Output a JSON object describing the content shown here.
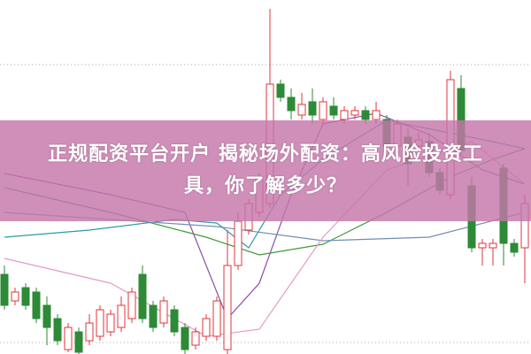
{
  "title": {
    "line1": "正规配资平台开户 揭秘场外配资：高风险投资工",
    "line2": "具，你了解多少？"
  },
  "colors": {
    "up": "#e0353a",
    "down": "#2d8a36",
    "banner": "#c476aa",
    "grid": "#aaaaaa"
  },
  "chart_data": {
    "type": "candlestick",
    "grid": "dotted horizontal",
    "axes": "none shown",
    "candles": [
      {
        "o": 22.5,
        "h": 25,
        "l": 12.5,
        "c": 13.75
      },
      {
        "o": 15,
        "h": 18.75,
        "l": 13.75,
        "c": 17.5
      },
      {
        "o": 18.75,
        "h": 20,
        "l": 12.5,
        "c": 13.75
      },
      {
        "o": 17.5,
        "h": 18.75,
        "l": 8.75,
        "c": 10
      },
      {
        "o": 13.75,
        "h": 16.25,
        "l": 2.5,
        "c": 7.5
      },
      {
        "o": 10,
        "h": 11.25,
        "l": 2.5,
        "c": 3.75
      },
      {
        "o": 1.25,
        "h": 8.75,
        "l": 0.5,
        "c": 7.5
      },
      {
        "o": 6.25,
        "h": 7.5,
        "l": 0,
        "c": 0.5
      },
      {
        "o": 3.75,
        "h": 11.25,
        "l": 2.5,
        "c": 8.75
      },
      {
        "o": 5,
        "h": 13.75,
        "l": 3.75,
        "c": 12.5
      },
      {
        "o": 6.25,
        "h": 12.5,
        "l": 5,
        "c": 11.25
      },
      {
        "o": 7.5,
        "h": 16.25,
        "l": 6.25,
        "c": 13.75
      },
      {
        "o": 10,
        "h": 18.75,
        "l": 8.75,
        "c": 17.5
      },
      {
        "o": 22.5,
        "h": 25,
        "l": 8.75,
        "c": 10
      },
      {
        "o": 13.75,
        "h": 15,
        "l": 6.25,
        "c": 7.5
      },
      {
        "o": 8.75,
        "h": 16.25,
        "l": 7.5,
        "c": 15
      },
      {
        "o": 12.5,
        "h": 13.75,
        "l": 5,
        "c": 6.25
      },
      {
        "o": 7.5,
        "h": 8.75,
        "l": 0,
        "c": 1.25
      },
      {
        "o": 2.5,
        "h": 7.5,
        "l": 1.25,
        "c": 6.25
      },
      {
        "o": 5,
        "h": 11.25,
        "l": 3.75,
        "c": 10
      },
      {
        "o": 5,
        "h": 16.25,
        "l": 3.75,
        "c": 15
      },
      {
        "o": 1.25,
        "h": 35,
        "l": 0,
        "c": 25
      },
      {
        "o": 25,
        "h": 40,
        "l": 23.75,
        "c": 37.5
      },
      {
        "o": 35,
        "h": 43.75,
        "l": 33.75,
        "c": 42.5
      },
      {
        "o": 40,
        "h": 51.25,
        "l": 38.75,
        "c": 50
      },
      {
        "o": 42.5,
        "h": 97.5,
        "l": 41.25,
        "c": 76.25
      },
      {
        "o": 76.25,
        "h": 77.5,
        "l": 71.25,
        "c": 72.5
      },
      {
        "o": 72.5,
        "h": 75,
        "l": 66.25,
        "c": 68.75
      },
      {
        "o": 67.5,
        "h": 73.75,
        "l": 66.25,
        "c": 70.5
      },
      {
        "o": 71.25,
        "h": 75,
        "l": 65,
        "c": 67.5
      },
      {
        "o": 66.25,
        "h": 72.5,
        "l": 65,
        "c": 71.25
      },
      {
        "o": 70,
        "h": 72.5,
        "l": 66.25,
        "c": 67.5
      },
      {
        "o": 66.25,
        "h": 70,
        "l": 65,
        "c": 68.75
      },
      {
        "o": 67.5,
        "h": 70,
        "l": 66.25,
        "c": 68.75
      },
      {
        "o": 68.75,
        "h": 70,
        "l": 65,
        "c": 66.25
      },
      {
        "o": 66.25,
        "h": 71.25,
        "l": 65,
        "c": 68.75
      },
      {
        "o": 66.25,
        "h": 67.5,
        "l": 57.5,
        "c": 58.75
      },
      {
        "o": 58.75,
        "h": 66.25,
        "l": 57.5,
        "c": 65
      },
      {
        "o": 61.25,
        "h": 63.75,
        "l": 47.5,
        "c": 53.75
      },
      {
        "o": 58.75,
        "h": 62.5,
        "l": 57.5,
        "c": 60.5
      },
      {
        "o": 60,
        "h": 62.5,
        "l": 50,
        "c": 51.25
      },
      {
        "o": 51.25,
        "h": 52.5,
        "l": 45,
        "c": 46.25
      },
      {
        "o": 45,
        "h": 80,
        "l": 43.75,
        "c": 77.5
      },
      {
        "o": 75,
        "h": 78.75,
        "l": 56.25,
        "c": 57.5
      },
      {
        "o": 47.5,
        "h": 50,
        "l": 28.75,
        "c": 30
      },
      {
        "o": 30,
        "h": 32.5,
        "l": 25,
        "c": 31.25
      },
      {
        "o": 30,
        "h": 32.5,
        "l": 25,
        "c": 31.25
      },
      {
        "o": 52.5,
        "h": 53.75,
        "l": 25,
        "c": 31.25
      },
      {
        "o": 31.25,
        "h": 32.5,
        "l": 27.5,
        "c": 28.75
      },
      {
        "o": 30,
        "h": 45,
        "l": 20,
        "c": 42.5
      }
    ],
    "moving_averages": [
      {
        "color": "#8e4fa8",
        "points": [
          [
            0,
            51
          ],
          [
            10,
            45
          ],
          [
            17,
            40
          ],
          [
            21,
            10
          ],
          [
            24,
            20
          ],
          [
            27,
            45
          ],
          [
            30,
            65
          ],
          [
            35,
            68
          ],
          [
            40,
            62
          ],
          [
            45,
            52
          ],
          [
            49,
            48
          ]
        ]
      },
      {
        "color": "#2a9aa8",
        "points": [
          [
            0,
            33
          ],
          [
            8,
            35
          ],
          [
            16,
            38
          ],
          [
            20,
            37
          ],
          [
            23,
            30
          ],
          [
            26,
            45
          ],
          [
            30,
            55
          ],
          [
            36,
            66
          ],
          [
            41,
            63
          ],
          [
            46,
            60
          ],
          [
            49,
            58
          ]
        ]
      },
      {
        "color": "#3f9a3a",
        "points": [
          [
            0,
            47
          ],
          [
            10,
            40
          ],
          [
            19,
            33
          ],
          [
            24,
            28
          ],
          [
            30,
            31
          ],
          [
            36,
            40
          ],
          [
            42,
            50
          ],
          [
            46,
            55
          ],
          [
            49,
            58
          ]
        ]
      },
      {
        "color": "#6f8fb0",
        "points": [
          [
            0,
            40
          ],
          [
            20,
            36
          ],
          [
            30,
            32
          ],
          [
            40,
            33
          ],
          [
            49,
            40
          ]
        ]
      },
      {
        "color": "#e59ac8",
        "points": [
          [
            0,
            27
          ],
          [
            10,
            20
          ],
          [
            19,
            5
          ],
          [
            24,
            7
          ],
          [
            30,
            33
          ],
          [
            36,
            52
          ],
          [
            44,
            60
          ],
          [
            49,
            48
          ]
        ]
      }
    ]
  }
}
